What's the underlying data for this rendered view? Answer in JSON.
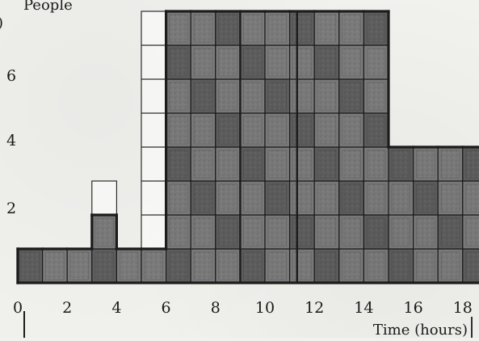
{
  "chart_data": {
    "type": "bar",
    "x_bin_width": 1,
    "x_ticks": [
      0,
      2,
      4,
      6,
      8,
      10,
      12,
      14,
      16,
      18
    ],
    "x_tick_labels": [
      "0",
      "2",
      "4",
      "6",
      "8",
      "10",
      "12",
      "14",
      "16",
      "18"
    ],
    "y_ticks": [
      2,
      4,
      6
    ],
    "y_tick_labels": [
      "2",
      "4",
      "6"
    ],
    "xlabel": "Time (hours)",
    "ylabel": "People",
    "xlim": [
      0,
      19
    ],
    "ylim": [
      0,
      8
    ],
    "bins": [
      {
        "x": 0,
        "shaded": 1,
        "outlined": 1
      },
      {
        "x": 1,
        "shaded": 1,
        "outlined": 1
      },
      {
        "x": 2,
        "shaded": 1,
        "outlined": 1
      },
      {
        "x": 3,
        "shaded": 2,
        "outlined": 3
      },
      {
        "x": 4,
        "shaded": 1,
        "outlined": 1
      },
      {
        "x": 5,
        "shaded": 1,
        "outlined": 8
      },
      {
        "x": 6,
        "shaded": 8,
        "outlined": 8
      },
      {
        "x": 7,
        "shaded": 8,
        "outlined": 8
      },
      {
        "x": 8,
        "shaded": 8,
        "outlined": 8
      },
      {
        "x": 9,
        "shaded": 8,
        "outlined": 8
      },
      {
        "x": 10,
        "shaded": 8,
        "outlined": 8
      },
      {
        "x": 11,
        "shaded": 8,
        "outlined": 8
      },
      {
        "x": 12,
        "shaded": 8,
        "outlined": 8
      },
      {
        "x": 13,
        "shaded": 8,
        "outlined": 8
      },
      {
        "x": 14,
        "shaded": 8,
        "outlined": 8
      },
      {
        "x": 15,
        "shaded": 4,
        "outlined": 4
      },
      {
        "x": 16,
        "shaded": 4,
        "outlined": 4
      },
      {
        "x": 17,
        "shaded": 4,
        "outlined": 4
      },
      {
        "x": 18,
        "shaded": 4,
        "outlined": 4
      }
    ],
    "colors": {
      "shaded": "#7b7b7b",
      "shaded_dark": "#5e5e5e",
      "empty": "#fbfbf9",
      "line": "#1c1c1c",
      "background": "#f1f1ee"
    }
  }
}
